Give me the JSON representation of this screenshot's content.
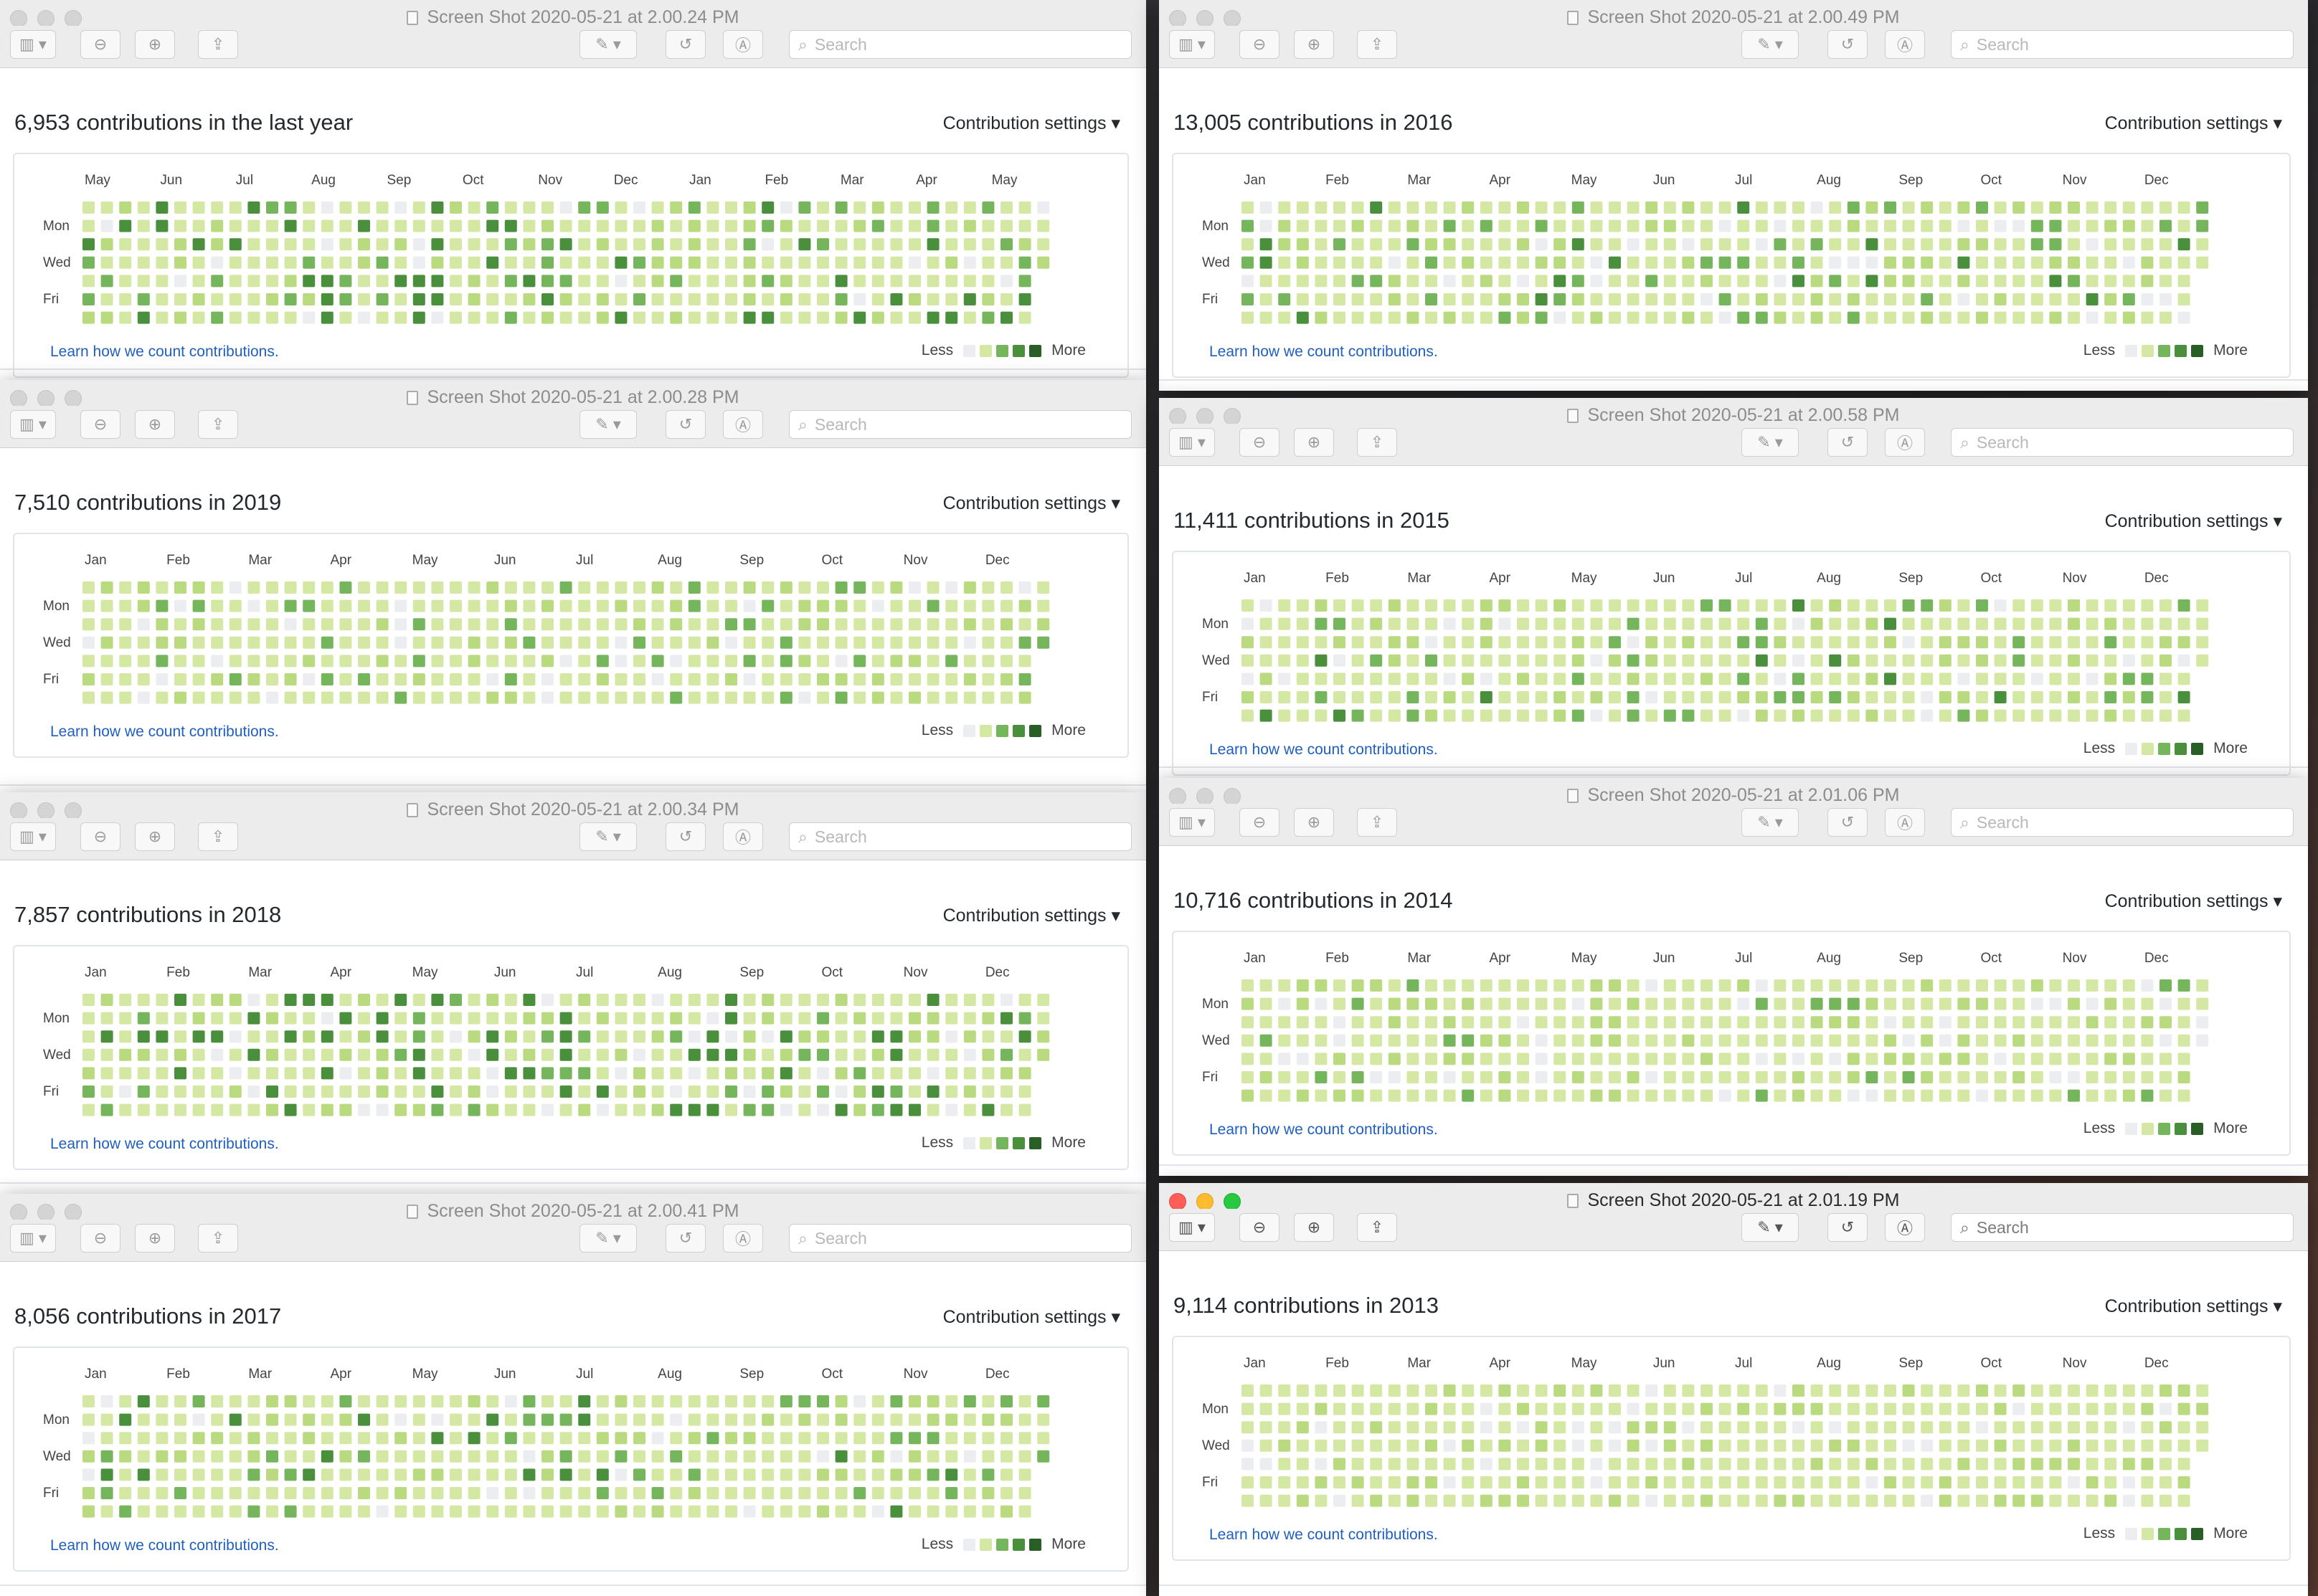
{
  "common": {
    "toolbar": {
      "search_placeholder": "Search"
    },
    "contribution_settings_label": "Contribution settings ▾",
    "learn_link": "Learn how we count contributions.",
    "legend": {
      "less": "Less",
      "more": "More"
    },
    "day_labels": [
      "Mon",
      "Wed",
      "Fri"
    ],
    "colors": {
      "level0": "#ebedf0",
      "level1": "#d4e8a3",
      "level2": "#b9da7f",
      "level3": "#75b55c",
      "level4": "#4a8f3c",
      "level5": "#2a5e27"
    }
  },
  "windows": [
    {
      "window_title": "Screen Shot 2020-05-21 at 2.00.24 PM",
      "heading": "6,953 contributions in the last year",
      "months": [
        "May",
        "Jun",
        "Jul",
        "Aug",
        "Sep",
        "Oct",
        "Nov",
        "Dec",
        "Jan",
        "Feb",
        "Mar",
        "Apr",
        "May"
      ],
      "active": false,
      "seed": 3,
      "intensity": 1.1,
      "weeks": 53
    },
    {
      "window_title": "Screen Shot 2020-05-21 at 2.00.49 PM",
      "heading": "13,005 contributions in 2016",
      "months": [
        "Jan",
        "Feb",
        "Mar",
        "Apr",
        "May",
        "Jun",
        "Jul",
        "Aug",
        "Sep",
        "Oct",
        "Nov",
        "Dec"
      ],
      "active": false,
      "seed": 7,
      "intensity": 1.0,
      "weeks": 53
    },
    {
      "window_title": "Screen Shot 2020-05-21 at 2.00.28 PM",
      "heading": "7,510 contributions in 2019",
      "months": [
        "Jan",
        "Feb",
        "Mar",
        "Apr",
        "May",
        "Jun",
        "Jul",
        "Aug",
        "Sep",
        "Oct",
        "Nov",
        "Dec"
      ],
      "active": false,
      "seed": 11,
      "intensity": 0.95,
      "weeks": 53
    },
    {
      "window_title": "Screen Shot 2020-05-21 at 2.00.58 PM",
      "heading": "11,411 contributions in 2015",
      "months": [
        "Jan",
        "Feb",
        "Mar",
        "Apr",
        "May",
        "Jun",
        "Jul",
        "Aug",
        "Sep",
        "Oct",
        "Nov",
        "Dec"
      ],
      "active": false,
      "seed": 19,
      "intensity": 1.0,
      "weeks": 53
    },
    {
      "window_title": "Screen Shot 2020-05-21 at 2.00.34 PM",
      "heading": "7,857 contributions in 2018",
      "months": [
        "Jan",
        "Feb",
        "Mar",
        "Apr",
        "May",
        "Jun",
        "Jul",
        "Aug",
        "Sep",
        "Oct",
        "Nov",
        "Dec"
      ],
      "active": false,
      "seed": 23,
      "intensity": 1.15,
      "weeks": 53
    },
    {
      "window_title": "Screen Shot 2020-05-21 at 2.01.06 PM",
      "heading": "10,716 contributions in 2014",
      "months": [
        "Jan",
        "Feb",
        "Mar",
        "Apr",
        "May",
        "Jun",
        "Jul",
        "Aug",
        "Sep",
        "Oct",
        "Nov",
        "Dec"
      ],
      "active": false,
      "seed": 29,
      "intensity": 0.9,
      "weeks": 53
    },
    {
      "window_title": "Screen Shot 2020-05-21 at 2.00.41 PM",
      "heading": "8,056 contributions in 2017",
      "months": [
        "Jan",
        "Feb",
        "Mar",
        "Apr",
        "May",
        "Jun",
        "Jul",
        "Aug",
        "Sep",
        "Oct",
        "Nov",
        "Dec"
      ],
      "active": false,
      "seed": 31,
      "intensity": 1.0,
      "weeks": 53
    },
    {
      "window_title": "Screen Shot 2020-05-21 at 2.01.19 PM",
      "heading": "9,114 contributions in 2013",
      "months": [
        "Jan",
        "Feb",
        "Mar",
        "Apr",
        "May",
        "Jun",
        "Jul",
        "Aug",
        "Sep",
        "Oct",
        "Nov",
        "Dec"
      ],
      "active": true,
      "seed": 37,
      "intensity": 0.85,
      "weeks": 53
    }
  ]
}
